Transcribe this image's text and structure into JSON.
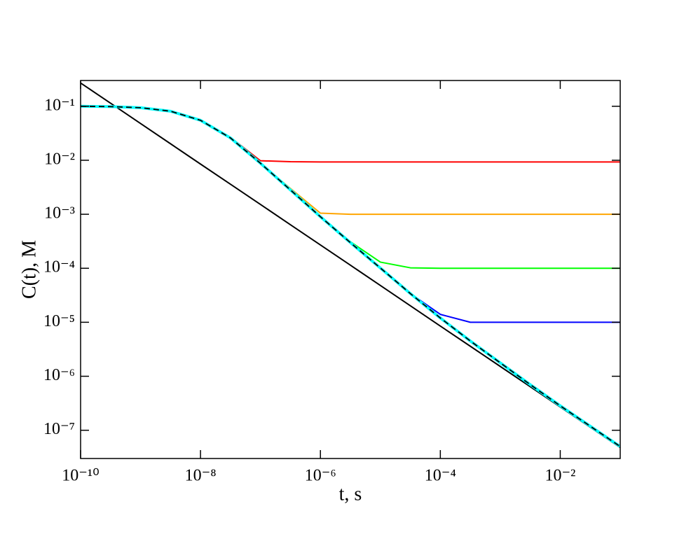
{
  "chart_data": {
    "type": "line",
    "xlabel": "t, s",
    "ylabel": "C(t), M",
    "xscale": "log",
    "yscale": "log",
    "x": [
      1e-10,
      3.162e-10,
      1e-09,
      3.162e-09,
      1e-08,
      3.162e-08,
      1e-07,
      3.162e-07,
      1e-06,
      3.162e-06,
      1e-05,
      3.162e-05,
      0.0001,
      0.0003162,
      0.001,
      0.003162,
      0.01,
      0.03162,
      0.1
    ],
    "series": [
      {
        "color": "#000000",
        "values": [
          0.27,
          0.114,
          0.048,
          0.0202,
          0.0085,
          0.0036,
          0.00152,
          0.00064,
          0.00027,
          0.000114,
          4.8e-05,
          2.02e-05,
          8.5e-06,
          3.6e-06,
          1.52e-06,
          6.4e-07,
          2.7e-07,
          1.14e-07,
          4.8e-08
        ]
      },
      {
        "color": "#ff0000",
        "values": [
          0.1,
          0.0985,
          0.094,
          0.081,
          0.055,
          0.0265,
          0.0098,
          0.0094,
          0.0093,
          0.0093,
          0.0093,
          0.0093,
          0.0093,
          0.0093,
          0.0093,
          0.0093,
          0.0093,
          0.0093,
          0.0093
        ]
      },
      {
        "color": "#ffa500",
        "values": [
          0.1,
          0.0985,
          0.094,
          0.081,
          0.055,
          0.0259,
          0.0088,
          0.003,
          0.00105,
          0.001,
          0.001,
          0.001,
          0.001,
          0.001,
          0.001,
          0.001,
          0.001,
          0.001,
          0.001
        ]
      },
      {
        "color": "#00ff00",
        "values": [
          0.1,
          0.0985,
          0.094,
          0.081,
          0.055,
          0.0259,
          0.0088,
          0.00282,
          0.0009,
          0.00031,
          0.00013,
          0.000102,
          0.0001,
          0.0001,
          0.0001,
          0.0001,
          0.0001,
          0.0001,
          0.0001
        ]
      },
      {
        "color": "#0000ff",
        "values": [
          0.1,
          0.0985,
          0.094,
          0.081,
          0.055,
          0.0259,
          0.0088,
          0.00282,
          0.0009,
          0.000298,
          0.000101,
          3.4e-05,
          1.4e-05,
          1e-05,
          1e-05,
          1e-05,
          1e-05,
          1e-05,
          1e-05
        ]
      },
      {
        "color": "#00ffff",
        "width": 4,
        "values": [
          0.1,
          0.0985,
          0.094,
          0.081,
          0.055,
          0.0259,
          0.0088,
          0.00282,
          0.0009,
          0.000298,
          0.000101,
          3.4e-05,
          1.2e-05,
          4.5e-06,
          1.77e-06,
          7e-07,
          2.84e-07,
          1.19e-07,
          5e-08
        ]
      },
      {
        "color": "#000000",
        "dashed": true,
        "values": [
          0.1,
          0.0985,
          0.094,
          0.081,
          0.055,
          0.0259,
          0.0088,
          0.00282,
          0.0009,
          0.000298,
          0.000101,
          3.4e-05,
          1.2e-05,
          4.5e-06,
          1.77e-06,
          7e-07,
          2.84e-07,
          1.19e-07,
          5e-08
        ]
      }
    ],
    "xlim": [
      1e-10,
      0.1
    ],
    "ylim": [
      3e-08,
      0.3
    ],
    "xticks": [
      {
        "value": 1e-10,
        "label": "10⁻¹⁰"
      },
      {
        "value": 1e-08,
        "label": "10⁻⁸"
      },
      {
        "value": 1e-06,
        "label": "10⁻⁶"
      },
      {
        "value": 0.0001,
        "label": "10⁻⁴"
      },
      {
        "value": 0.01,
        "label": "10⁻²"
      }
    ],
    "yticks": [
      {
        "value": 1e-07,
        "label": "10⁻⁷"
      },
      {
        "value": 1e-06,
        "label": "10⁻⁶"
      },
      {
        "value": 1e-05,
        "label": "10⁻⁵"
      },
      {
        "value": 0.0001,
        "label": "10⁻⁴"
      },
      {
        "value": 0.001,
        "label": "10⁻³"
      },
      {
        "value": 0.01,
        "label": "10⁻²"
      },
      {
        "value": 0.1,
        "label": "10⁻¹"
      }
    ],
    "grid": false
  }
}
